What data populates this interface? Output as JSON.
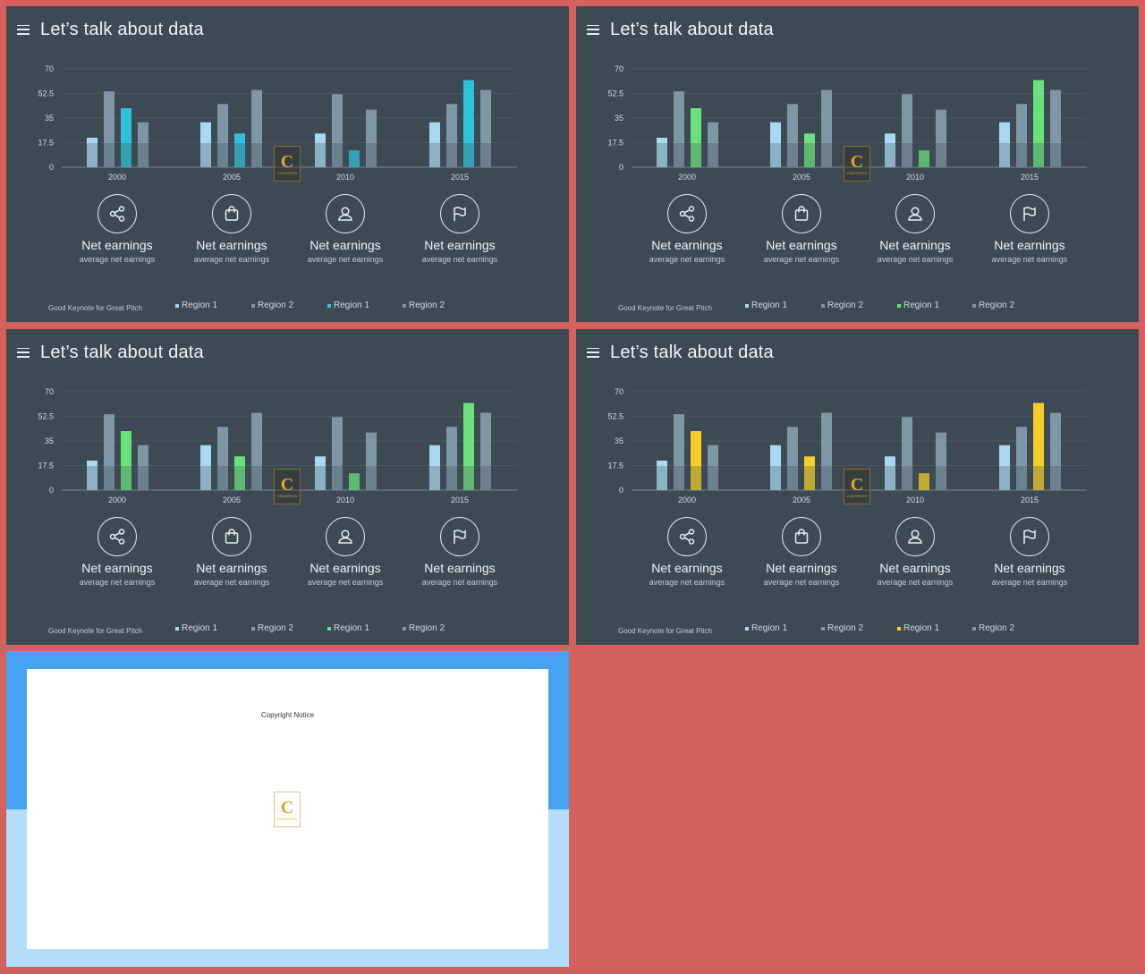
{
  "slide_title": "Let’s talk about data",
  "footer_note": "Good Keynote for Great Pitch",
  "copyright_notice": "Copyright Notice",
  "logo": {
    "letter": "C",
    "text": "CONTENTS"
  },
  "features": [
    {
      "icon": "share-icon",
      "title": "Net earnings",
      "subtitle": "average net earnings"
    },
    {
      "icon": "shopping-bag-icon",
      "title": "Net earnings",
      "subtitle": "average net earnings"
    },
    {
      "icon": "user-icon",
      "title": "Net earnings",
      "subtitle": "average net earnings"
    },
    {
      "icon": "flag-icon",
      "title": "Net earnings",
      "subtitle": "average net earnings"
    }
  ],
  "colors": {
    "background": "#d3625f",
    "slide_bg": "#3e4a53",
    "region1": "#a9d8f2",
    "region2": "#7d97a6",
    "copy_blue": "#45a3f1",
    "copy_light_blue": "#b3defb"
  },
  "slides": [
    {
      "accent": "#2fc1dc",
      "legend": [
        "Region 1",
        "Region 2",
        "Region 1",
        "Region 2"
      ]
    },
    {
      "accent": "#6ae27c",
      "legend": [
        "Region 1",
        "Region 2",
        "Region 1",
        "Region 2"
      ]
    },
    {
      "accent": "#6ae27c",
      "legend": [
        "Region 1",
        "Region 2",
        "Region 1",
        "Region 2"
      ]
    },
    {
      "accent": "#f5cd27",
      "legend": [
        "Region 1",
        "Region 2",
        "Region 1",
        "Region 2"
      ]
    }
  ],
  "chart_data": {
    "type": "bar",
    "categories": [
      "2000",
      "2005",
      "2010",
      "2015"
    ],
    "yticks": [
      "70",
      "52.5",
      "35",
      "17.5",
      "0"
    ],
    "ylim": [
      0,
      70
    ],
    "series": [
      {
        "name": "Region 1",
        "values": [
          21,
          32,
          24,
          32
        ]
      },
      {
        "name": "Region 2",
        "values": [
          54,
          45,
          52,
          45
        ]
      },
      {
        "name": "Region 1",
        "values": [
          42,
          24,
          12,
          62
        ]
      },
      {
        "name": "Region 2",
        "values": [
          32,
          55,
          41,
          55
        ]
      }
    ],
    "grid": true
  }
}
